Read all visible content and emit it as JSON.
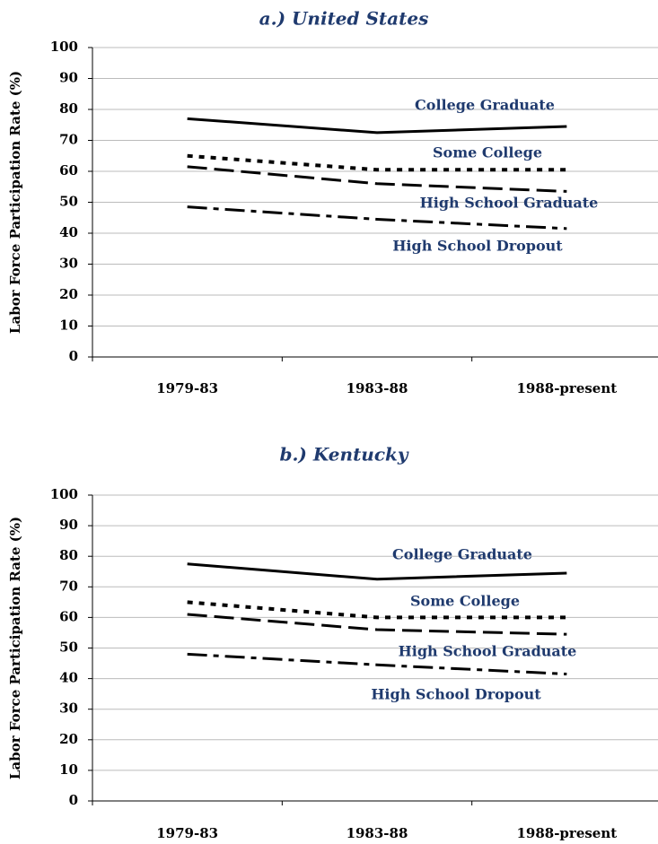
{
  "chart_data": [
    {
      "type": "line",
      "title": "a.) United States",
      "y_label": "Labor Force Participation Rate (%)",
      "categories": [
        "1979-83",
        "1983-88",
        "1988-present"
      ],
      "ylim": [
        0,
        100
      ],
      "yticks": [
        0,
        10,
        20,
        30,
        40,
        50,
        60,
        70,
        80,
        90,
        100
      ],
      "grid": true,
      "series": [
        {
          "name": "College Graduate",
          "color": "#000000",
          "line_style": "solid",
          "values": [
            77,
            72.5,
            74.5
          ]
        },
        {
          "name": "Some College",
          "color": "#000000",
          "line_style": "dotted",
          "values": [
            65,
            60.5,
            60.5
          ]
        },
        {
          "name": "High School Graduate",
          "color": "#000000",
          "line_style": "dashed",
          "values": [
            61.5,
            56,
            53.5
          ]
        },
        {
          "name": "High School Dropout",
          "color": "#000000",
          "line_style": "dashdot",
          "values": [
            48.5,
            44.5,
            41.5
          ]
        }
      ]
    },
    {
      "type": "line",
      "title": "b.) Kentucky",
      "y_label": "Labor Force Participation Rate (%)",
      "categories": [
        "1979-83",
        "1983-88",
        "1988-present"
      ],
      "ylim": [
        0,
        100
      ],
      "yticks": [
        0,
        10,
        20,
        30,
        40,
        50,
        60,
        70,
        80,
        90,
        100
      ],
      "grid": true,
      "series": [
        {
          "name": "College Graduate",
          "color": "#000000",
          "line_style": "solid",
          "values": [
            77.5,
            72.5,
            74.5
          ]
        },
        {
          "name": "Some College",
          "color": "#000000",
          "line_style": "dotted",
          "values": [
            65,
            60,
            60
          ]
        },
        {
          "name": "High School Graduate",
          "color": "#000000",
          "line_style": "dashed",
          "values": [
            61,
            56,
            54.5
          ]
        },
        {
          "name": "High School Dropout",
          "color": "#000000",
          "line_style": "dashdot",
          "values": [
            48,
            44.5,
            41.5
          ]
        }
      ]
    }
  ]
}
